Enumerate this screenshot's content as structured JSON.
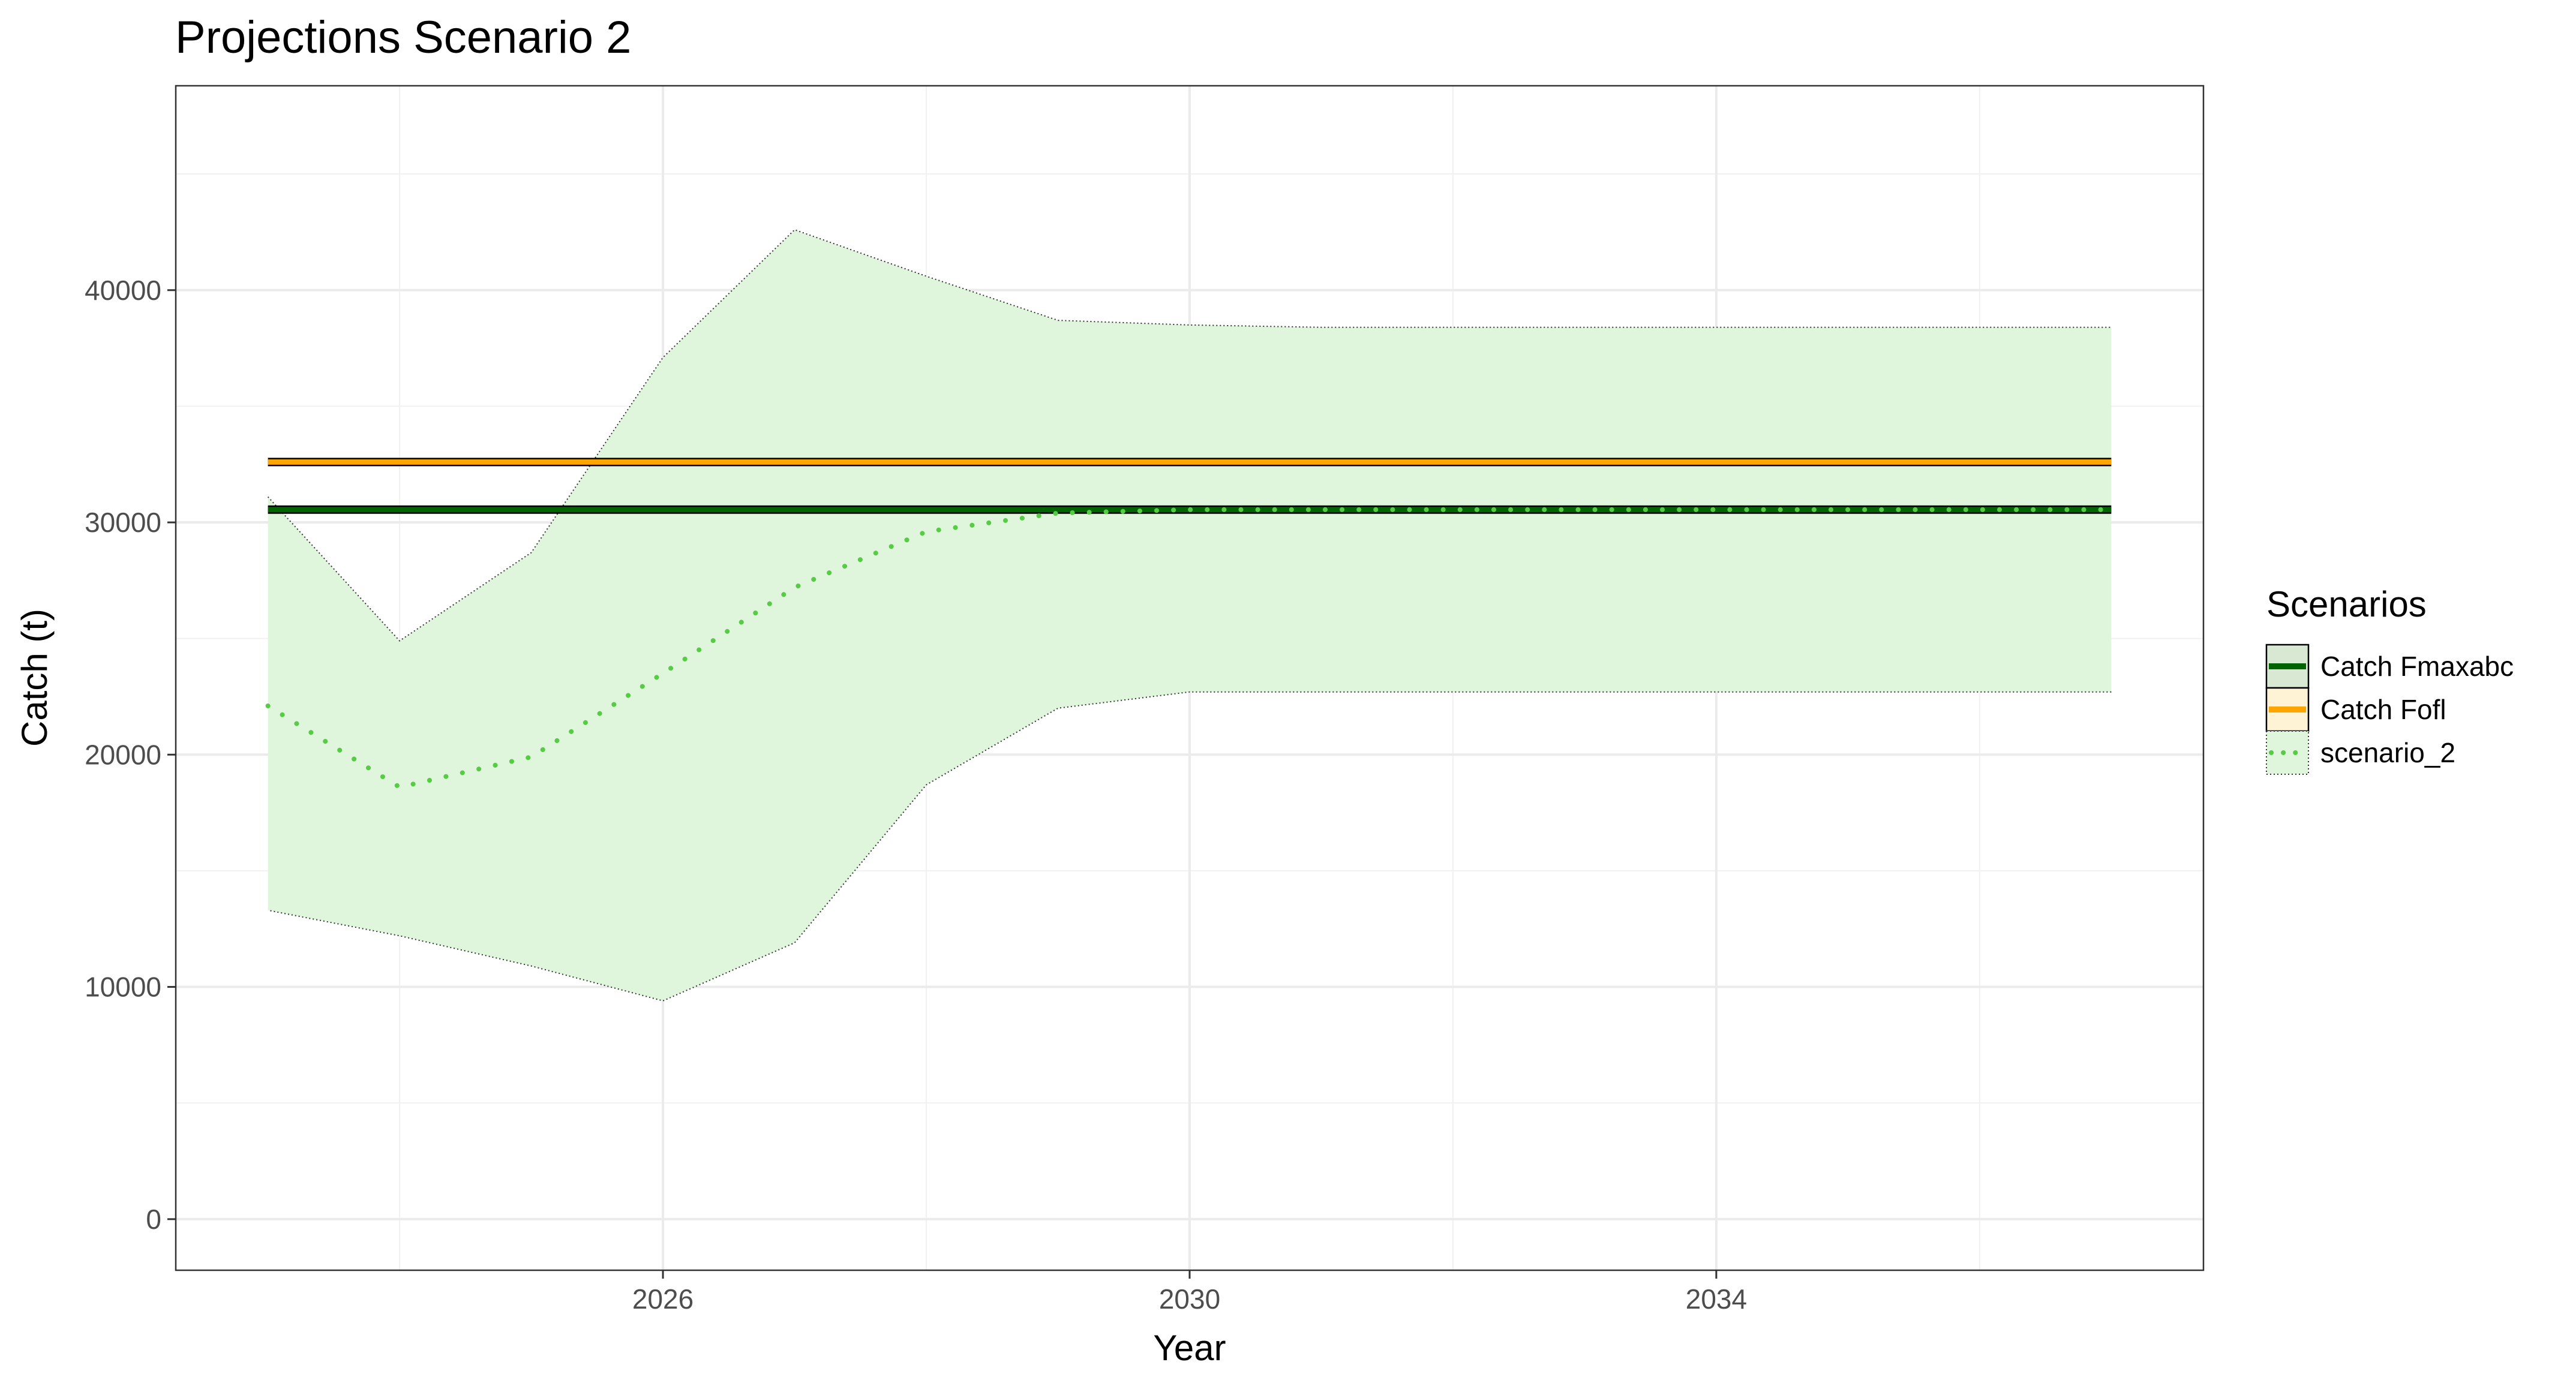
{
  "chart_data": {
    "type": "line",
    "title": "Projections Scenario 2",
    "xlabel": "Year",
    "ylabel": "Catch (t)",
    "xlim": [
      2022.3,
      2037.7
    ],
    "ylim": [
      -2200,
      48800
    ],
    "x_ticks": [
      2026,
      2030,
      2034
    ],
    "x_tick_labels": [
      "2026",
      "2030",
      "2034"
    ],
    "x_minor_ticks": [
      2024,
      2028,
      2032,
      2036
    ],
    "y_ticks": [
      0,
      10000,
      20000,
      30000,
      40000
    ],
    "y_tick_labels": [
      "0",
      "10000",
      "20000",
      "30000",
      "40000"
    ],
    "y_minor_ticks": [
      5000,
      15000,
      25000,
      35000,
      45000
    ],
    "grid": true,
    "legend": {
      "title": "Scenarios",
      "position": "right",
      "entries": [
        "Catch Fmaxabc",
        "Catch Fofl",
        "scenario_2"
      ]
    },
    "series": [
      {
        "name": "Catch Fmaxabc",
        "style": "solid",
        "color": "#006400",
        "x": [
          2023,
          2037
        ],
        "y": [
          30550,
          30550
        ]
      },
      {
        "name": "Catch Fofl",
        "style": "solid",
        "color": "#FFA500",
        "x": [
          2023,
          2037
        ],
        "y": [
          32600,
          32600
        ]
      },
      {
        "name": "scenario_2",
        "style": "dotted",
        "color": "#55CC44",
        "x": [
          2023,
          2024,
          2025,
          2026,
          2027,
          2028,
          2029,
          2030,
          2031,
          2032,
          2033,
          2034,
          2035,
          2036,
          2037
        ],
        "y": [
          22100,
          18600,
          19900,
          23500,
          27200,
          29600,
          30400,
          30550,
          30550,
          30550,
          30550,
          30550,
          30550,
          30550,
          30550
        ],
        "ribbon_lower": [
          13300,
          12200,
          10900,
          9400,
          11900,
          18700,
          22000,
          22700,
          22700,
          22700,
          22700,
          22700,
          22700,
          22700,
          22700
        ],
        "ribbon_upper": [
          31100,
          24900,
          28700,
          37100,
          42600,
          40600,
          38700,
          38500,
          38400,
          38400,
          38400,
          38400,
          38400,
          38400,
          38400
        ],
        "ribbon_color": "#DFF5DC"
      }
    ]
  }
}
